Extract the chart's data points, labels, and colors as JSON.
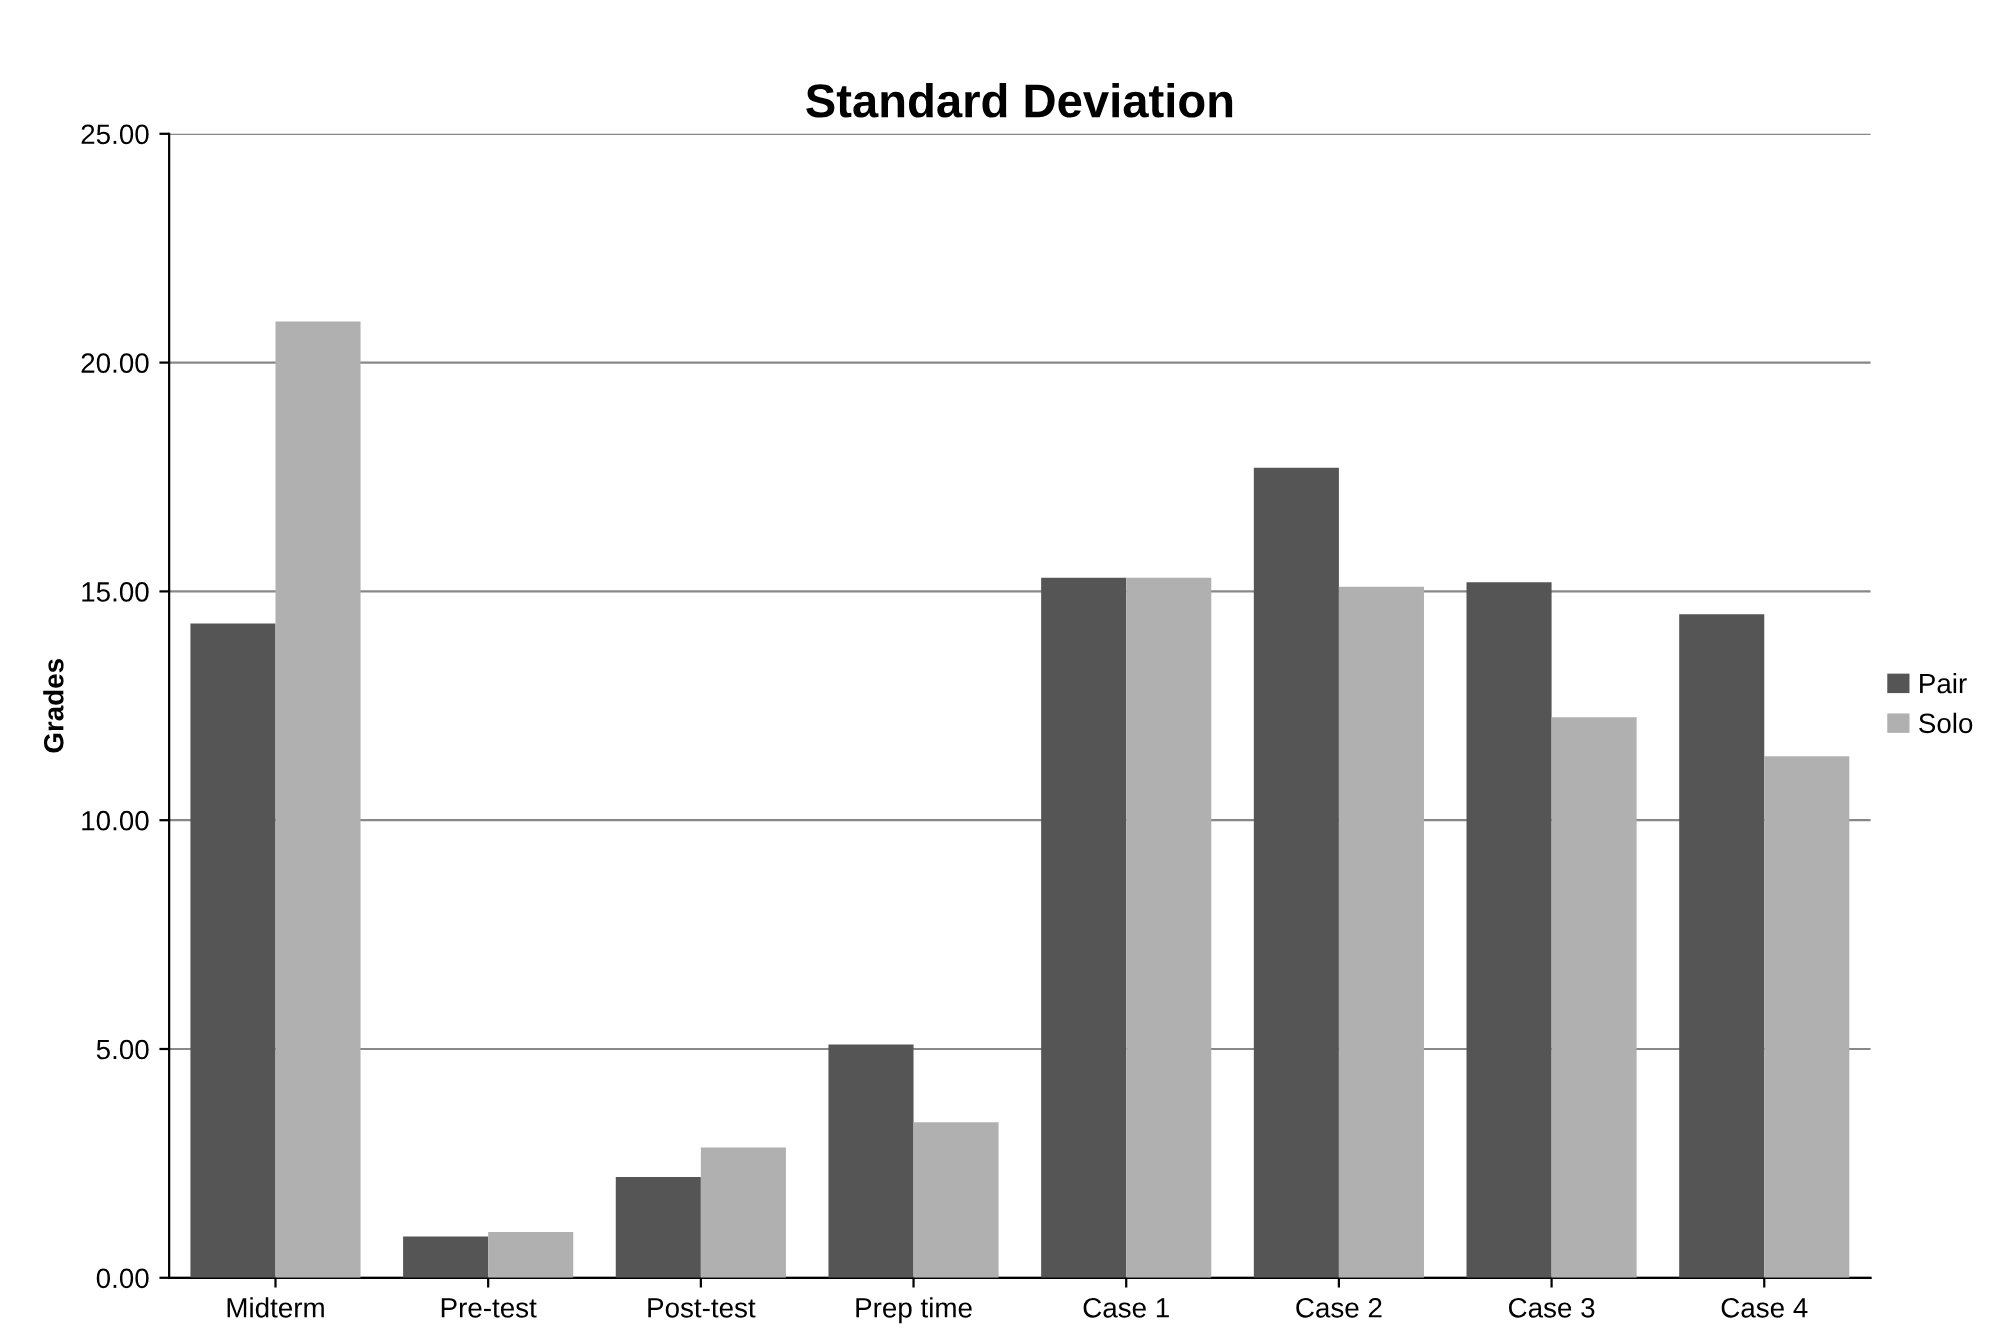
{
  "chart_data": {
    "type": "bar",
    "title": "Standard Deviation",
    "ylabel": "Grades",
    "categories": [
      "Midterm",
      "Pre-test",
      "Post-test",
      "Prep time",
      "Case 1",
      "Case 2",
      "Case 3",
      "Case 4"
    ],
    "series": [
      {
        "name": "Pair",
        "color": "#555555",
        "values": [
          14.3,
          0.9,
          2.2,
          5.1,
          15.3,
          17.7,
          15.2,
          14.5
        ]
      },
      {
        "name": "Solo",
        "color": "#b0b0b0",
        "values": [
          20.9,
          1.0,
          2.85,
          3.4,
          15.3,
          15.1,
          12.25,
          11.4
        ]
      }
    ],
    "ylim": [
      0,
      25
    ],
    "yticks": [
      {
        "value": 0,
        "label": "0.00"
      },
      {
        "value": 5,
        "label": "5.00"
      },
      {
        "value": 10,
        "label": "10.00"
      },
      {
        "value": 15,
        "label": "15.00"
      },
      {
        "value": 20,
        "label": "20.00"
      },
      {
        "value": 25,
        "label": "25.00"
      }
    ],
    "grid": "y",
    "legend": "right"
  }
}
